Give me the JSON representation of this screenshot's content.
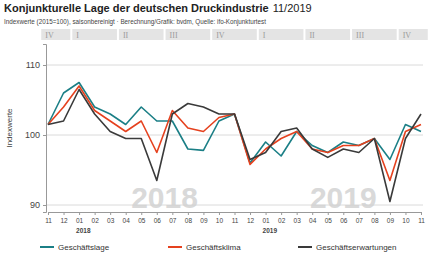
{
  "chart_data": {
    "type": "line",
    "title": "Konjunkturelle Lage der deutschen Druckindustrie",
    "title_date": "11/2019",
    "subtitle": "Indexwerte (2015=100), saisonbereinigt · Berechnung/Grafik: bvdm, Quelle: ifo-Konjunkturtest",
    "y_label": "Indexwerte",
    "categories": [
      "11",
      "12",
      "01",
      "02",
      "03",
      "04",
      "05",
      "06",
      "07",
      "08",
      "09",
      "10",
      "11",
      "12",
      "01",
      "02",
      "03",
      "04",
      "05",
      "06",
      "07",
      "08",
      "09",
      "10",
      "11"
    ],
    "quarters": [
      {
        "label": "IV",
        "from": 0,
        "to": 1
      },
      {
        "label": "I",
        "from": 2,
        "to": 4
      },
      {
        "label": "II",
        "from": 5,
        "to": 7
      },
      {
        "label": "III",
        "from": 8,
        "to": 10
      },
      {
        "label": "IV",
        "from": 11,
        "to": 13
      },
      {
        "label": "I",
        "from": 14,
        "to": 16
      },
      {
        "label": "II",
        "from": 17,
        "to": 19
      },
      {
        "label": "III",
        "from": 20,
        "to": 22
      },
      {
        "label": "IV",
        "from": 23,
        "to": 24
      }
    ],
    "years": [
      {
        "label": "2018",
        "from": 2,
        "to": 13
      },
      {
        "label": "2019",
        "from": 14,
        "to": 24
      }
    ],
    "series": [
      {
        "name": "Geschäftslage",
        "color": "#1b7f86",
        "values": [
          101.5,
          106,
          107.5,
          104,
          103,
          101.5,
          104,
          102,
          102,
          98,
          97.8,
          102,
          103,
          96,
          99,
          97,
          100.5,
          98.5,
          97.5,
          99,
          98.5,
          99.5,
          96.5,
          101.5,
          100.5
        ]
      },
      {
        "name": "Geschäftsklima",
        "color": "#e5411e",
        "values": [
          101.5,
          104,
          107,
          103.5,
          102,
          100.5,
          102,
          97.5,
          103.5,
          101,
          100.5,
          102.5,
          103,
          95.8,
          98,
          99.5,
          100.5,
          98,
          97.5,
          98.5,
          98.5,
          99.5,
          93.5,
          100.5,
          101.5
        ]
      },
      {
        "name": "Geschäftserwartungen",
        "color": "#3a3a3a",
        "values": [
          101.5,
          102,
          106.5,
          103,
          100.5,
          99.5,
          99.5,
          93.5,
          103,
          104.5,
          104,
          103,
          103,
          96.5,
          97.5,
          100.5,
          101,
          98,
          96.8,
          98,
          97.5,
          99.5,
          90.5,
          99.5,
          103
        ]
      }
    ],
    "ylim": [
      89,
      113
    ],
    "yticks": [
      90,
      100,
      110
    ],
    "grid": true,
    "legend": "bottom"
  }
}
